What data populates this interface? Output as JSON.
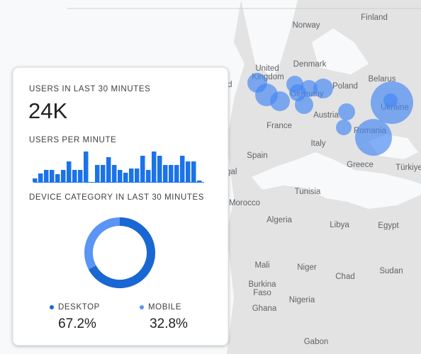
{
  "map": {
    "labels": [
      "Finland",
      "Norway",
      "United",
      "Kingdom",
      "Denmark",
      "Belarus",
      "Poland",
      "Germany",
      "Ukraine",
      "Austria",
      "France",
      "Romania",
      "Italy",
      "Spain",
      "Greece",
      "Türkiye",
      "Portugal",
      "Ireland",
      "Tunisia",
      "Morocco",
      "Algeria",
      "Libya",
      "Egypt",
      "Mali",
      "Niger",
      "Chad",
      "Sudan",
      "Burkina",
      "Faso",
      "Nigeria",
      "Ghana",
      "Gabon"
    ]
  },
  "card": {
    "users_title": "USERS IN LAST 30 MINUTES",
    "users_value": "24K",
    "per_minute_title": "USERS PER MINUTE",
    "per_minute": {
      "type": "bar",
      "color": "#1a73e8",
      "values": [
        5,
        12,
        17,
        17,
        11,
        17,
        29,
        17,
        17,
        43,
        0,
        24,
        24,
        35,
        24,
        17,
        13,
        19,
        19,
        37,
        17,
        43,
        37,
        24,
        24,
        24,
        37,
        29,
        29,
        2
      ]
    },
    "device_title": "DEVICE CATEGORY IN LAST 30 MINUTES",
    "device": {
      "type": "donut",
      "categories": [
        "DESKTOP",
        "MOBILE"
      ],
      "values": [
        67.2,
        32.8
      ],
      "value_labels": [
        "67.2%",
        "32.8%"
      ],
      "colors": [
        "#1967d2",
        "#5a95f5"
      ]
    }
  }
}
